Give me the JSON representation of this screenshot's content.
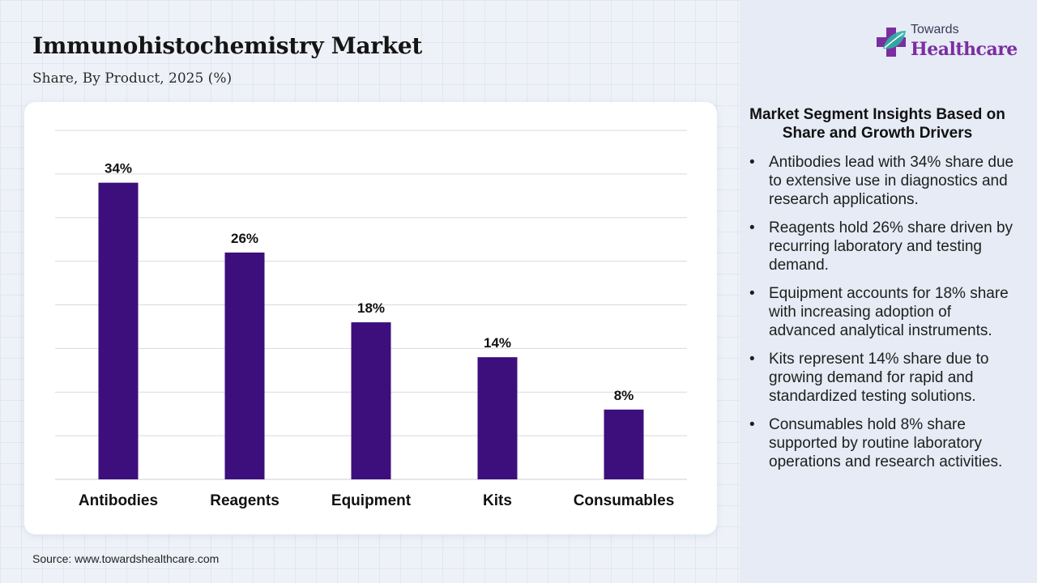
{
  "header": {
    "title": "Immunohistochemistry Market",
    "subtitle": "Share, By Product, 2025 (%)"
  },
  "logo": {
    "line1": "Towards",
    "line2": "Healthcare",
    "icon": "medical-cross-leaf-icon"
  },
  "colors": {
    "bar": "#3c0f7c",
    "brand": "#7b2ea0",
    "grid": "#d9d9d9"
  },
  "chart_data": {
    "type": "bar",
    "categories": [
      "Antibodies",
      "Reagents",
      "Equipment",
      "Kits",
      "Consumables"
    ],
    "values": [
      34,
      26,
      18,
      14,
      8
    ],
    "data_labels": [
      "34%",
      "26%",
      "18%",
      "14%",
      "8%"
    ],
    "title": "Immunohistochemistry Market",
    "subtitle": "Share, By Product, 2025 (%)",
    "xlabel": "",
    "ylabel": "",
    "ylim": [
      0,
      40
    ],
    "grid": true,
    "legend": "none"
  },
  "insights": {
    "title": "Market Segment Insights Based on Share and Growth Drivers",
    "items": [
      "Antibodies lead with 34% share due to extensive use in diagnostics and research applications.",
      "Reagents hold 26% share driven by recurring laboratory and testing demand.",
      "Equipment accounts for 18% share with increasing adoption of advanced analytical instruments.",
      "Kits represent 14% share due to growing demand for rapid and standardized testing solutions.",
      "Consumables hold 8% share supported by routine laboratory operations and research activities."
    ]
  },
  "footer": {
    "source": "Source: www.towardshealthcare.com"
  }
}
